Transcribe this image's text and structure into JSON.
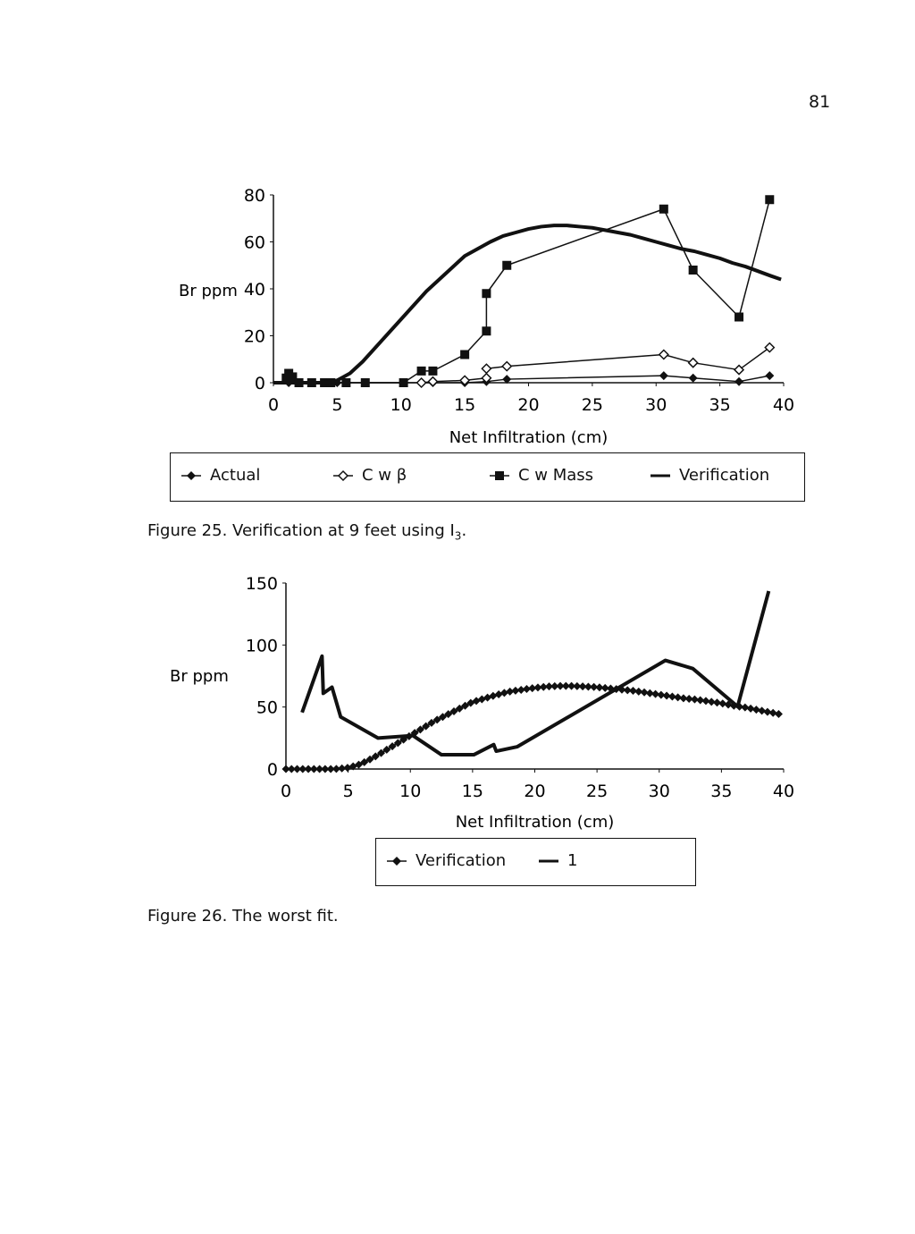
{
  "page_number": "81",
  "figures": [
    {
      "caption_text": "Figure 25. Verification at 9 feet using I",
      "caption_sub": "3",
      "caption_end": "."
    },
    {
      "caption_text": "Figure 26. The worst fit.",
      "caption_sub": "",
      "caption_end": ""
    }
  ],
  "chart_data": [
    {
      "type": "line",
      "xlabel": "Net Infiltration (cm)",
      "ylabel": "Br ppm",
      "xlim": [
        0,
        40
      ],
      "ylim": [
        0,
        80
      ],
      "xticks": [
        0,
        5,
        10,
        15,
        20,
        25,
        30,
        35,
        40
      ],
      "yticks": [
        0,
        20,
        40,
        60,
        80
      ],
      "grid": false,
      "legend": "bottom",
      "series": [
        {
          "name": "Actual",
          "marker": "filled-diamond",
          "color": "#111111",
          "x": [
            1.2,
            2,
            3,
            4,
            5,
            10.2,
            11.6,
            12.5,
            15,
            16.7,
            18.3,
            30.6,
            32.9,
            36.5,
            38.9
          ],
          "y": [
            0,
            0,
            0,
            0,
            0,
            0,
            0,
            0,
            0,
            0.5,
            1.5,
            3,
            2,
            0.5,
            3
          ]
        },
        {
          "name": "C w β",
          "marker": "open-diamond",
          "color": "#111111",
          "x": [
            11.6,
            12.5,
            15,
            16.7,
            16.7,
            18.3,
            30.6,
            32.9,
            36.5,
            38.9
          ],
          "y": [
            0,
            0.5,
            1,
            2,
            6,
            7,
            12,
            8.5,
            5.5,
            15
          ]
        },
        {
          "name": "C w Mass",
          "marker": "filled-square",
          "color": "#111111",
          "x": [
            1,
            1.2,
            1.5,
            2,
            3,
            4,
            4.5,
            5.7,
            7.2,
            10.2,
            11.6,
            12.5,
            15,
            16.7,
            16.7,
            18.3,
            30.6,
            32.9,
            36.5,
            38.9
          ],
          "y": [
            2,
            4,
            2.5,
            0,
            0,
            0,
            0,
            0,
            0,
            0,
            5,
            5,
            12,
            22,
            38,
            50,
            74,
            48,
            28,
            78
          ]
        },
        {
          "name": "Verification",
          "marker": "none",
          "color": "#111111",
          "x": [
            0,
            2,
            4,
            5,
            6,
            7,
            8,
            9,
            10,
            11,
            12,
            13,
            14,
            15,
            16,
            17,
            18,
            19,
            20,
            21,
            22,
            23,
            24,
            25,
            26,
            27,
            28,
            29,
            30,
            31,
            32,
            33,
            34,
            35,
            36,
            37,
            38,
            39,
            39.8
          ],
          "y": [
            0,
            0,
            0,
            1,
            4,
            9,
            15,
            21,
            27,
            33,
            39,
            44,
            49,
            54,
            57,
            60,
            62.5,
            64,
            65.5,
            66.5,
            67,
            67,
            66.5,
            66,
            65,
            64,
            63,
            61.5,
            60,
            58.5,
            57,
            56,
            54.5,
            53,
            51,
            49.5,
            47.5,
            45.5,
            44
          ]
        }
      ]
    },
    {
      "type": "line",
      "xlabel": "Net Infiltration (cm)",
      "ylabel": "Br ppm",
      "xlim": [
        0,
        40
      ],
      "ylim": [
        0,
        150
      ],
      "xticks": [
        0,
        5,
        10,
        15,
        20,
        25,
        30,
        35,
        40
      ],
      "yticks": [
        0,
        50,
        100,
        150
      ],
      "grid": false,
      "legend": "bottom",
      "series": [
        {
          "name": "Verification",
          "marker": "filled-diamond",
          "color": "#111111",
          "x": [
            0,
            2,
            4,
            5,
            6,
            7,
            8,
            9,
            10,
            11,
            12,
            13,
            14,
            15,
            16,
            17,
            18,
            19,
            20,
            21,
            22,
            23,
            24,
            25,
            26,
            27,
            28,
            29,
            30,
            31,
            32,
            33,
            34,
            35,
            36,
            37,
            38,
            39,
            39.8
          ],
          "y": [
            0,
            0,
            0,
            1,
            4,
            9,
            15,
            21,
            27,
            33,
            39,
            44,
            49,
            54,
            57,
            60,
            62.5,
            64,
            65.5,
            66.5,
            67,
            67,
            66.5,
            66,
            65,
            64,
            63,
            61.5,
            60,
            58.5,
            57,
            56,
            54.5,
            53,
            51,
            49.5,
            47.5,
            45.5,
            44
          ]
        },
        {
          "name": "1",
          "marker": "none",
          "color": "#111111",
          "x": [
            1.3,
            2.9,
            3.0,
            3.7,
            4.4,
            7.4,
            10.2,
            12.5,
            15.1,
            16.7,
            16.9,
            18.6,
            30.5,
            32.7,
            36.3,
            38.8
          ],
          "y": [
            45.6,
            91,
            61,
            66,
            42,
            25,
            27,
            11.5,
            11.5,
            19.7,
            14.4,
            18,
            87.6,
            81,
            50.4,
            143.5
          ]
        }
      ]
    }
  ]
}
